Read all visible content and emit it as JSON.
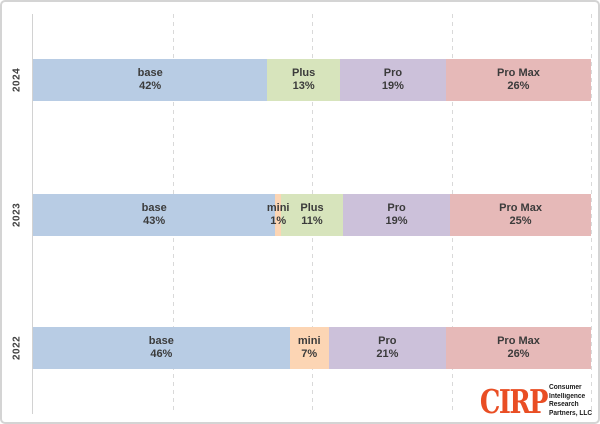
{
  "chart_data": {
    "type": "bar",
    "subtype": "horizontal-stacked",
    "title": "",
    "xlabel": "",
    "ylabel": "",
    "x_axis": {
      "min": 0,
      "max": 100,
      "gridlines_pct": [
        25,
        50,
        75,
        100
      ],
      "grid_style": "dashed"
    },
    "categories": [
      "2024",
      "2023",
      "2022"
    ],
    "segment_colors": {
      "base": "#B8CCE4",
      "mini": "#FCD5B4",
      "Plus": "#D7E4BC",
      "Pro": "#CCC1DA",
      "Pro Max": "#E6B9B8"
    },
    "rows": [
      {
        "year": "2024",
        "segments": [
          {
            "label": "base",
            "pct": 42
          },
          {
            "label": "Plus",
            "pct": 13
          },
          {
            "label": "Pro",
            "pct": 19
          },
          {
            "label": "Pro Max",
            "pct": 26
          }
        ]
      },
      {
        "year": "2023",
        "segments": [
          {
            "label": "base",
            "pct": 43
          },
          {
            "label": "mini",
            "pct": 1
          },
          {
            "label": "Plus",
            "pct": 11
          },
          {
            "label": "Pro",
            "pct": 19
          },
          {
            "label": "Pro Max",
            "pct": 25
          }
        ]
      },
      {
        "year": "2022",
        "segments": [
          {
            "label": "base",
            "pct": 46
          },
          {
            "label": "mini",
            "pct": 7
          },
          {
            "label": "Pro",
            "pct": 21
          },
          {
            "label": "Pro Max",
            "pct": 26
          }
        ]
      }
    ]
  },
  "logo": {
    "brand": "CIRP",
    "org_lines": [
      "Consumer",
      "Intelligence",
      "Research",
      "Partners, LLC"
    ],
    "brand_color": "#E94E24",
    "text_color": "#1a1a1a"
  },
  "styles": {
    "label_text_color": "#3b3b3b",
    "grid_color": "#d9d9d9"
  }
}
